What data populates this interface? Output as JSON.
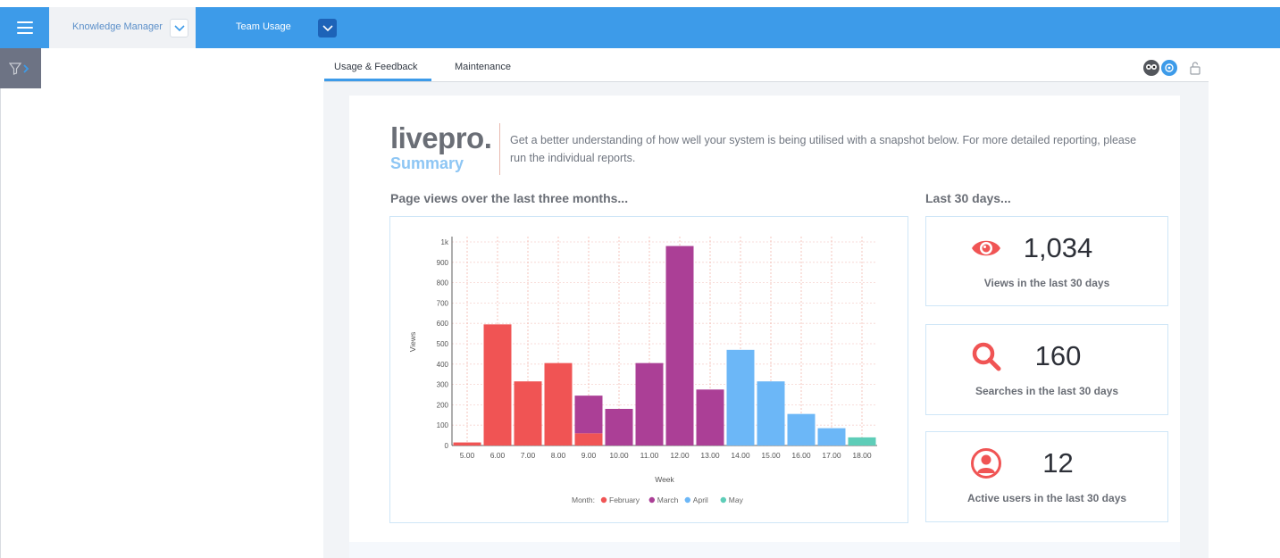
{
  "header": {
    "knowledge_manager": "Knowledge Manager",
    "team_usage": "Team Usage"
  },
  "tabs": [
    {
      "label": "Usage & Feedback",
      "active": true
    },
    {
      "label": "Maintenance",
      "active": false
    }
  ],
  "summary": {
    "logo": "livepro.",
    "logo_sub": "Summary",
    "intro": "Get a better understanding of how well your system is being utilised with a snapshot below. For more detailed reporting, please run the individual reports."
  },
  "page_views_title": "Page views over the last three months...",
  "last30_title": "Last 30 days...",
  "stats": [
    {
      "value": "1,034",
      "label": "Views in the last 30 days",
      "icon": "eye-icon"
    },
    {
      "value": "160",
      "label": "Searches in the last 30 days",
      "icon": "search-icon"
    },
    {
      "value": "12",
      "label": "Active users in the last 30 days",
      "icon": "user-icon"
    }
  ],
  "colors": {
    "topbar": "#3d9be9",
    "accent_red": "#f05454",
    "february": "#f05454",
    "march": "#ab3f96",
    "april": "#6cb7f7",
    "may": "#5ecdb8"
  },
  "chart_data": {
    "type": "bar",
    "xlabel": "Week",
    "ylabel": "Views",
    "ylim": [
      0,
      1000
    ],
    "yticks": [
      "0",
      "100",
      "200",
      "300",
      "400",
      "500",
      "600",
      "700",
      "800",
      "900",
      "1k"
    ],
    "categories": [
      "5.00",
      "6.00",
      "7.00",
      "8.00",
      "9.00",
      "10.00",
      "11.00",
      "12.00",
      "13.00",
      "14.00",
      "15.00",
      "16.00",
      "17.00",
      "18.00"
    ],
    "legend_title": "Month:",
    "series": [
      {
        "name": "February",
        "color": "#f05454",
        "values": [
          15,
          595,
          315,
          405,
          60,
          0,
          0,
          0,
          0,
          0,
          0,
          0,
          0,
          0
        ]
      },
      {
        "name": "March",
        "color": "#ab3f96",
        "values": [
          0,
          0,
          0,
          0,
          185,
          180,
          405,
          980,
          275,
          0,
          0,
          0,
          0,
          0
        ]
      },
      {
        "name": "April",
        "color": "#6cb7f7",
        "values": [
          0,
          0,
          0,
          0,
          0,
          0,
          0,
          0,
          0,
          470,
          315,
          155,
          85,
          0
        ]
      },
      {
        "name": "May",
        "color": "#5ecdb8",
        "values": [
          0,
          0,
          0,
          0,
          0,
          0,
          0,
          0,
          0,
          0,
          0,
          0,
          0,
          40
        ]
      }
    ]
  }
}
